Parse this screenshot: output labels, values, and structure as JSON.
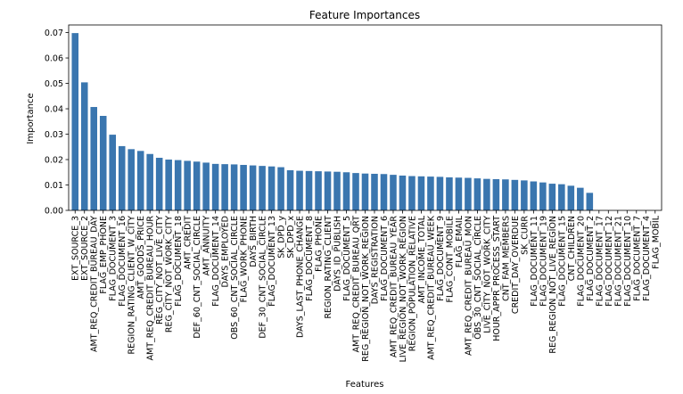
{
  "chart_data": {
    "type": "bar",
    "title": "Feature Importances",
    "xlabel": "Features",
    "ylabel": "Importance",
    "ylim": [
      0,
      0.073
    ],
    "yticks": [
      0.0,
      0.01,
      0.02,
      0.03,
      0.04,
      0.05,
      0.06,
      0.07
    ],
    "ytick_labels": [
      "0.00",
      "0.01",
      "0.02",
      "0.03",
      "0.04",
      "0.05",
      "0.06",
      "0.07"
    ],
    "bar_color": "#3a76af",
    "grid": false,
    "categories": [
      "EXT_SOURCE_3",
      "EXT_SOURCE_2",
      "AMT_REQ_CREDIT_BUREAU_DAY",
      "FLAG_EMP_PHONE",
      "FLAG_DOCUMENT_3",
      "FLAG_DOCUMENT_16",
      "REGION_RATING_CLIENT_W_CITY",
      "AMT_GOODS_PRICE",
      "AMT_REQ_CREDIT_BUREAU_HOUR",
      "REG_CITY_NOT_LIVE_CITY",
      "REG_CITY_NOT_WORK_CITY",
      "FLAG_DOCUMENT_18",
      "AMT_CREDIT",
      "DEF_60_CNT_SOCIAL_CIRCLE",
      "AMT_ANNUITY",
      "FLAG_DOCUMENT_14",
      "DAYS_EMPLOYED",
      "OBS_60_CNT_SOCIAL_CIRCLE",
      "FLAG_WORK_PHONE",
      "DAYS_BIRTH",
      "DEF_30_CNT_SOCIAL_CIRCLE",
      "FLAG_DOCUMENT_13",
      "SK_DPD_y",
      "SK_DPD_x",
      "DAYS_LAST_PHONE_CHANGE",
      "FLAG_DOCUMENT_8",
      "FLAG_PHONE",
      "REGION_RATING_CLIENT",
      "DAYS_ID_PUBLISH",
      "FLAG_DOCUMENT_5",
      "AMT_REQ_CREDIT_BUREAU_QRT",
      "REG_REGION_NOT_WORK_REGION",
      "DAYS_REGISTRATION",
      "FLAG_DOCUMENT_6",
      "AMT_REQ_CREDIT_BUREAU_YEAR",
      "LIVE_REGION_NOT_WORK_REGION",
      "REGION_POPULATION_RELATIVE",
      "AMT_INCOME_TOTAL",
      "AMT_REQ_CREDIT_BUREAU_WEEK",
      "FLAG_DOCUMENT_9",
      "FLAG_CONT_MOBILE",
      "FLAG_EMAIL",
      "AMT_REQ_CREDIT_BUREAU_MON",
      "OBS_30_CNT_SOCIAL_CIRCLE",
      "LIVE_CITY_NOT_WORK_CITY",
      "HOUR_APPR_PROCESS_START",
      "CNT_FAM_MEMBERS",
      "CREDIT_DAY_OVERDUE",
      "SK_CURR",
      "FLAG_DOCUMENT_11",
      "FLAG_DOCUMENT_19",
      "REG_REGION_NOT_LIVE_REGION",
      "FLAG_DOCUMENT_15",
      "CNT_CHILDREN",
      "FLAG_DOCUMENT_20",
      "FLAG_DOCUMENT_2",
      "FLAG_DOCUMENT_17",
      "FLAG_DOCUMENT_12",
      "FLAG_DOCUMENT_21",
      "FLAG_DOCUMENT_10",
      "FLAG_DOCUMENT_7",
      "FLAG_DOCUMENT_4",
      "FLAG_MOBIL"
    ],
    "values": [
      0.0698,
      0.0504,
      0.0407,
      0.0372,
      0.0298,
      0.0253,
      0.0241,
      0.0234,
      0.0222,
      0.0207,
      0.02,
      0.0198,
      0.0195,
      0.0192,
      0.0188,
      0.0183,
      0.0182,
      0.0181,
      0.0179,
      0.0177,
      0.0175,
      0.0173,
      0.017,
      0.0158,
      0.0156,
      0.0155,
      0.0154,
      0.0153,
      0.0152,
      0.015,
      0.0147,
      0.0145,
      0.0144,
      0.0143,
      0.014,
      0.0137,
      0.0135,
      0.0134,
      0.0133,
      0.0132,
      0.013,
      0.0129,
      0.0128,
      0.0126,
      0.0124,
      0.0123,
      0.0122,
      0.012,
      0.0118,
      0.0114,
      0.011,
      0.0105,
      0.0103,
      0.0097,
      0.0089,
      0.0069,
      0.0,
      0.0,
      0.0,
      0.0,
      0.0,
      0.0,
      0.0
    ]
  }
}
